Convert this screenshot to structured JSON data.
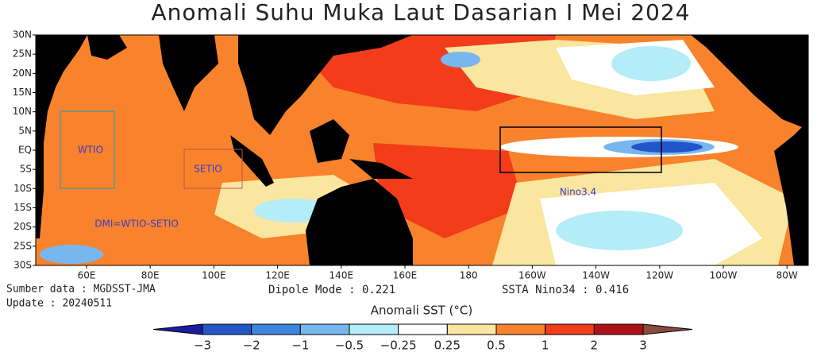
{
  "title": "Anomali Suhu Muka Laut Dasarian I Mei 2024",
  "lat_labels": [
    "30N",
    "25N",
    "20N",
    "15N",
    "10N",
    "5N",
    "EQ",
    "5S",
    "10S",
    "15S",
    "20S",
    "25S",
    "30S"
  ],
  "lon_labels": [
    "60E",
    "80E",
    "100E",
    "120E",
    "140E",
    "160E",
    "180",
    "160W",
    "140W",
    "120W",
    "100W",
    "80W"
  ],
  "regions": {
    "wtio": "WTIO",
    "setio": "SETIO",
    "nino34": "Nino3.4",
    "dmi": "DMI=WTIO-SETIO"
  },
  "source": "Sumber data : MGDSST-JMA",
  "update": "Update : 20240511",
  "dipole_mode": "Dipole Mode : 0.221",
  "ssta_nino34": "SSTA Nino34 : 0.416",
  "colorbar": {
    "title": "Anomali SST (°C)",
    "labels": [
      "−3",
      "−2",
      "−1",
      "−0.5",
      "−0.25",
      "0.25",
      "0.5",
      "1",
      "2",
      "3"
    ],
    "colors": [
      "#1c1ca0",
      "#2256c8",
      "#3c86e0",
      "#78b6f0",
      "#b4ecf8",
      "#ffffff",
      "#fbe6a0",
      "#f8832c",
      "#f23c1a",
      "#b01018",
      "#8a4a3c"
    ]
  }
}
